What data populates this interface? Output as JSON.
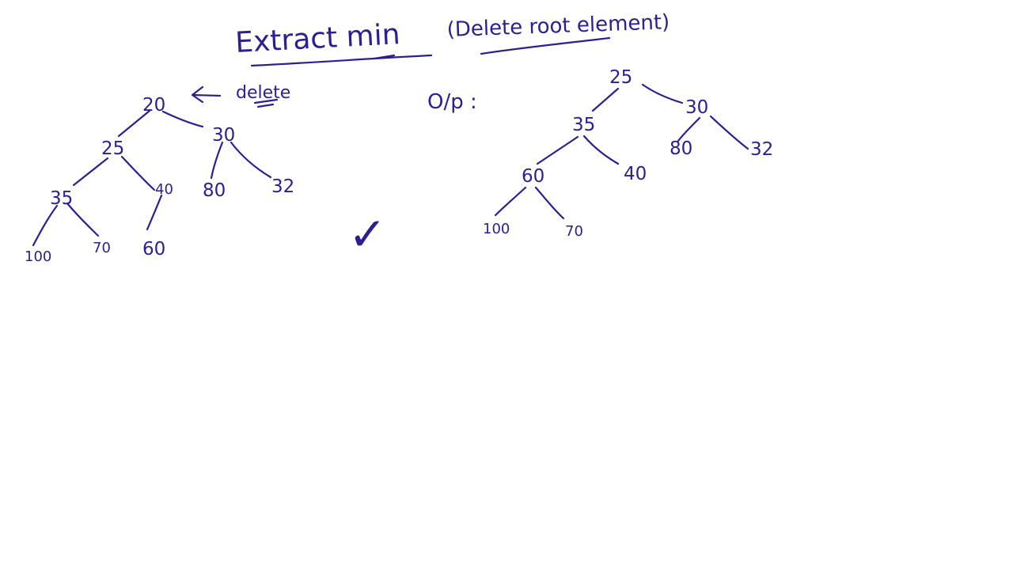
{
  "ink_color": "#2a1f93",
  "heading": {
    "title": "Extract min",
    "subtitle": "(Delete root element)"
  },
  "labels": {
    "delete_note": "delete",
    "output_label": "O/p :",
    "check_mark": "✓"
  },
  "input_heap": {
    "nodes": [
      "20",
      "25",
      "30",
      "35",
      "40",
      "80",
      "32",
      "100",
      "70",
      "60"
    ]
  },
  "output_heap": {
    "nodes": [
      "25",
      "35",
      "30",
      "60",
      "40",
      "80",
      "32",
      "100",
      "70"
    ]
  }
}
